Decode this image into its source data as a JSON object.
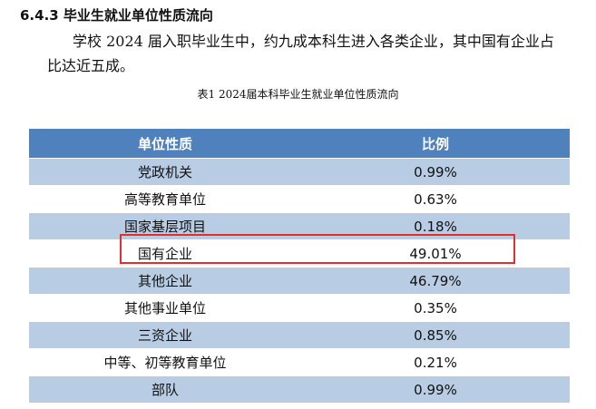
{
  "heading": "6.4.3 毕业生就业单位性质流向",
  "paragraph": "学校 2024 届入职毕业生中，约九成本科生进入各类企业，其中国有企业占比达近五成。",
  "table": {
    "caption": "表1 2024届本科毕业生就业单位性质流向",
    "header": [
      "单位性质",
      "比例"
    ],
    "rows": [
      [
        "党政机关",
        "0.99%"
      ],
      [
        "高等教育单位",
        "0.63%"
      ],
      [
        "国家基层项目",
        "0.18%"
      ],
      [
        "国有企业",
        "49.01%"
      ],
      [
        "其他企业",
        "46.79%"
      ],
      [
        "其他事业单位",
        "0.35%"
      ],
      [
        "三资企业",
        "0.85%"
      ],
      [
        "中等、初等教育单位",
        "0.21%"
      ],
      [
        "部队",
        "0.99%"
      ]
    ]
  }
}
